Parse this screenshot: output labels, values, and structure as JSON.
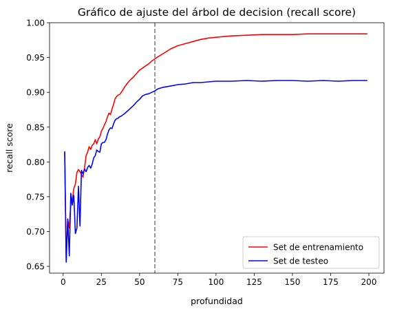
{
  "chart_data": {
    "type": "line",
    "title": "Gráfico de ajuste del árbol de decision (recall score)",
    "xlabel": "profundidad",
    "ylabel": "recall score",
    "xlim": [
      -8.9,
      209.9
    ],
    "ylim": [
      0.6402,
      1.0
    ],
    "xticks": [
      0,
      25,
      50,
      75,
      100,
      125,
      150,
      175,
      200
    ],
    "yticks": [
      0.65,
      0.7,
      0.75,
      0.8,
      0.85,
      0.9,
      0.95,
      1.0
    ],
    "xtick_labels": [
      "0",
      "25",
      "50",
      "75",
      "100",
      "125",
      "150",
      "175",
      "200"
    ],
    "ytick_labels": [
      "0.65",
      "0.70",
      "0.75",
      "0.80",
      "0.85",
      "0.90",
      "0.95",
      "1.00"
    ],
    "grid": false,
    "legend_position": "lower-right",
    "vline": {
      "x": 60,
      "color": "#808080",
      "style": "dashed"
    },
    "series": [
      {
        "name": "Set de entrenamiento",
        "color": "#ff0000",
        "x": [
          1,
          2,
          3,
          4,
          5,
          6,
          7,
          8,
          9,
          10,
          11,
          12,
          13,
          14,
          15,
          16,
          17,
          18,
          19,
          20,
          21,
          22,
          23,
          24,
          25,
          26,
          27,
          28,
          29,
          30,
          31,
          32,
          33,
          34,
          35,
          36,
          37,
          38,
          39,
          40,
          42,
          44,
          46,
          48,
          50,
          52,
          54,
          56,
          58,
          60,
          62,
          65,
          70,
          75,
          80,
          85,
          90,
          95,
          100,
          110,
          120,
          130,
          140,
          150,
          160,
          170,
          180,
          190,
          199
        ],
        "values": [
          0.815,
          0.66,
          0.718,
          0.705,
          0.74,
          0.745,
          0.762,
          0.768,
          0.785,
          0.789,
          0.786,
          0.782,
          0.778,
          0.792,
          0.809,
          0.814,
          0.822,
          0.818,
          0.824,
          0.826,
          0.832,
          0.826,
          0.833,
          0.836,
          0.844,
          0.848,
          0.853,
          0.858,
          0.865,
          0.87,
          0.868,
          0.876,
          0.883,
          0.891,
          0.894,
          0.896,
          0.897,
          0.9,
          0.903,
          0.907,
          0.913,
          0.918,
          0.922,
          0.927,
          0.932,
          0.935,
          0.938,
          0.941,
          0.945,
          0.948,
          0.951,
          0.955,
          0.962,
          0.967,
          0.97,
          0.973,
          0.976,
          0.978,
          0.979,
          0.981,
          0.982,
          0.983,
          0.983,
          0.983,
          0.984,
          0.984,
          0.984,
          0.984,
          0.984
        ]
      },
      {
        "name": "Set de testeo",
        "color": "#0000ff",
        "x": [
          1,
          2,
          3,
          4,
          5,
          6,
          7,
          8,
          9,
          10,
          11,
          12,
          13,
          14,
          15,
          16,
          17,
          18,
          19,
          20,
          21,
          22,
          23,
          24,
          25,
          26,
          27,
          28,
          29,
          30,
          31,
          32,
          33,
          34,
          35,
          36,
          37,
          38,
          40,
          42,
          44,
          46,
          48,
          50,
          52,
          54,
          56,
          58,
          60,
          62,
          65,
          70,
          75,
          80,
          85,
          90,
          95,
          100,
          110,
          120,
          130,
          140,
          150,
          160,
          170,
          180,
          190,
          199
        ],
        "values": [
          0.815,
          0.656,
          0.718,
          0.665,
          0.755,
          0.738,
          0.752,
          0.697,
          0.705,
          0.765,
          0.708,
          0.788,
          0.783,
          0.79,
          0.786,
          0.792,
          0.795,
          0.791,
          0.797,
          0.806,
          0.809,
          0.817,
          0.815,
          0.814,
          0.826,
          0.828,
          0.828,
          0.832,
          0.84,
          0.846,
          0.849,
          0.848,
          0.855,
          0.86,
          0.862,
          0.863,
          0.865,
          0.866,
          0.869,
          0.873,
          0.877,
          0.881,
          0.886,
          0.89,
          0.895,
          0.897,
          0.898,
          0.9,
          0.902,
          0.905,
          0.907,
          0.909,
          0.911,
          0.912,
          0.914,
          0.914,
          0.915,
          0.916,
          0.916,
          0.917,
          0.916,
          0.917,
          0.917,
          0.916,
          0.917,
          0.916,
          0.917,
          0.917
        ]
      }
    ]
  }
}
